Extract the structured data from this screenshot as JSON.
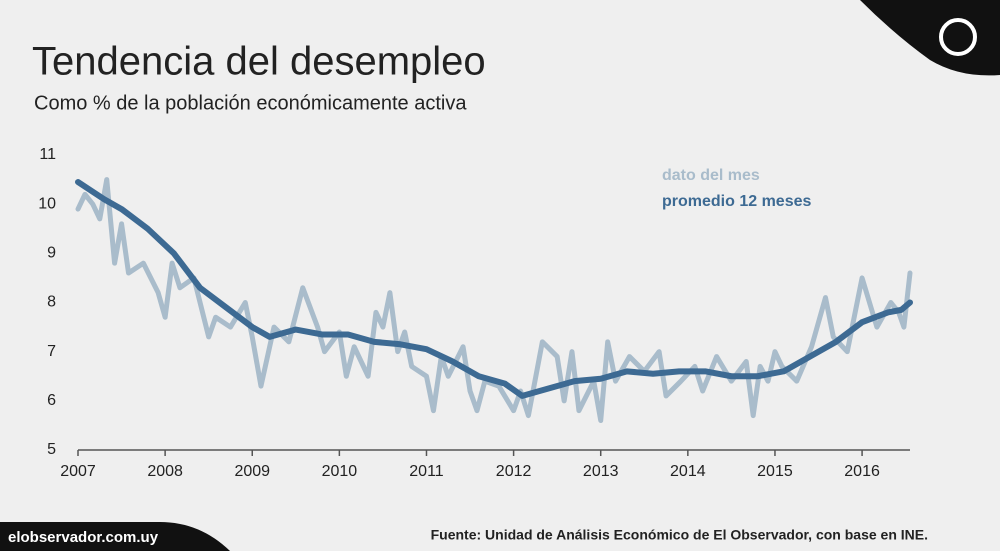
{
  "chart_data": {
    "type": "line",
    "title": "Tendencia del desempleo",
    "subtitle": "Como % de la población económicamente activa",
    "source": "Fuente: Unidad de Análisis Económico de El Observador, con base en INE.",
    "brand": "elobservador.com.uy",
    "xlim": [
      2007,
      2016.55
    ],
    "xticks": [
      2007,
      2008,
      2009,
      2010,
      2011,
      2012,
      2013,
      2014,
      2015,
      2016
    ],
    "ylim": [
      5,
      11
    ],
    "yticks": [
      5,
      6,
      7,
      8,
      9,
      10,
      11
    ],
    "series": [
      {
        "name": "dato del mes",
        "color": "#a9bccb",
        "x": [
          2007.0,
          2007.08,
          2007.17,
          2007.25,
          2007.33,
          2007.42,
          2007.5,
          2007.58,
          2007.75,
          2007.92,
          2008.0,
          2008.08,
          2008.17,
          2008.33,
          2008.5,
          2008.58,
          2008.75,
          2008.92,
          2009.0,
          2009.1,
          2009.25,
          2009.42,
          2009.58,
          2009.75,
          2009.83,
          2010.0,
          2010.08,
          2010.17,
          2010.33,
          2010.42,
          2010.5,
          2010.58,
          2010.67,
          2010.75,
          2010.83,
          2011.0,
          2011.08,
          2011.17,
          2011.25,
          2011.42,
          2011.5,
          2011.58,
          2011.67,
          2011.83,
          2012.0,
          2012.08,
          2012.17,
          2012.33,
          2012.5,
          2012.58,
          2012.67,
          2012.75,
          2012.92,
          2013.0,
          2013.08,
          2013.17,
          2013.33,
          2013.5,
          2013.67,
          2013.75,
          2013.92,
          2014.08,
          2014.17,
          2014.33,
          2014.5,
          2014.67,
          2014.75,
          2014.83,
          2014.92,
          2015.0,
          2015.08,
          2015.25,
          2015.42,
          2015.58,
          2015.67,
          2015.83,
          2016.0,
          2016.17,
          2016.33,
          2016.42,
          2016.48,
          2016.55
        ],
        "values": [
          9.9,
          10.2,
          10.0,
          9.7,
          10.5,
          8.8,
          9.6,
          8.6,
          8.8,
          8.2,
          7.7,
          8.8,
          8.3,
          8.5,
          7.3,
          7.7,
          7.5,
          8.0,
          7.3,
          6.3,
          7.5,
          7.2,
          8.3,
          7.5,
          7.0,
          7.4,
          6.5,
          7.1,
          6.5,
          7.8,
          7.5,
          8.2,
          7.0,
          7.4,
          6.7,
          6.5,
          5.8,
          6.9,
          6.5,
          7.1,
          6.2,
          5.8,
          6.4,
          6.3,
          5.8,
          6.2,
          5.7,
          7.2,
          6.9,
          6.0,
          7.0,
          5.8,
          6.4,
          5.6,
          7.2,
          6.4,
          6.9,
          6.6,
          7.0,
          6.1,
          6.4,
          6.7,
          6.2,
          6.9,
          6.4,
          6.8,
          5.7,
          6.7,
          6.4,
          7.0,
          6.7,
          6.4,
          7.1,
          8.1,
          7.3,
          7.0,
          8.5,
          7.5,
          8.0,
          7.8,
          7.5,
          8.6
        ]
      },
      {
        "name": "promedio 12 meses",
        "color": "#3d6a93",
        "x": [
          2007.0,
          2007.3,
          2007.5,
          2007.8,
          2008.1,
          2008.4,
          2008.7,
          2009.0,
          2009.2,
          2009.5,
          2009.8,
          2010.1,
          2010.4,
          2010.7,
          2011.0,
          2011.3,
          2011.6,
          2011.9,
          2012.1,
          2012.4,
          2012.7,
          2013.0,
          2013.3,
          2013.6,
          2013.9,
          2014.2,
          2014.5,
          2014.8,
          2015.1,
          2015.4,
          2015.7,
          2016.0,
          2016.3,
          2016.45,
          2016.55
        ],
        "values": [
          10.45,
          10.1,
          9.9,
          9.5,
          9.0,
          8.3,
          7.9,
          7.5,
          7.3,
          7.45,
          7.35,
          7.35,
          7.2,
          7.15,
          7.05,
          6.8,
          6.5,
          6.35,
          6.1,
          6.25,
          6.4,
          6.45,
          6.6,
          6.55,
          6.6,
          6.6,
          6.5,
          6.5,
          6.6,
          6.9,
          7.2,
          7.6,
          7.8,
          7.85,
          8.0
        ]
      }
    ]
  }
}
